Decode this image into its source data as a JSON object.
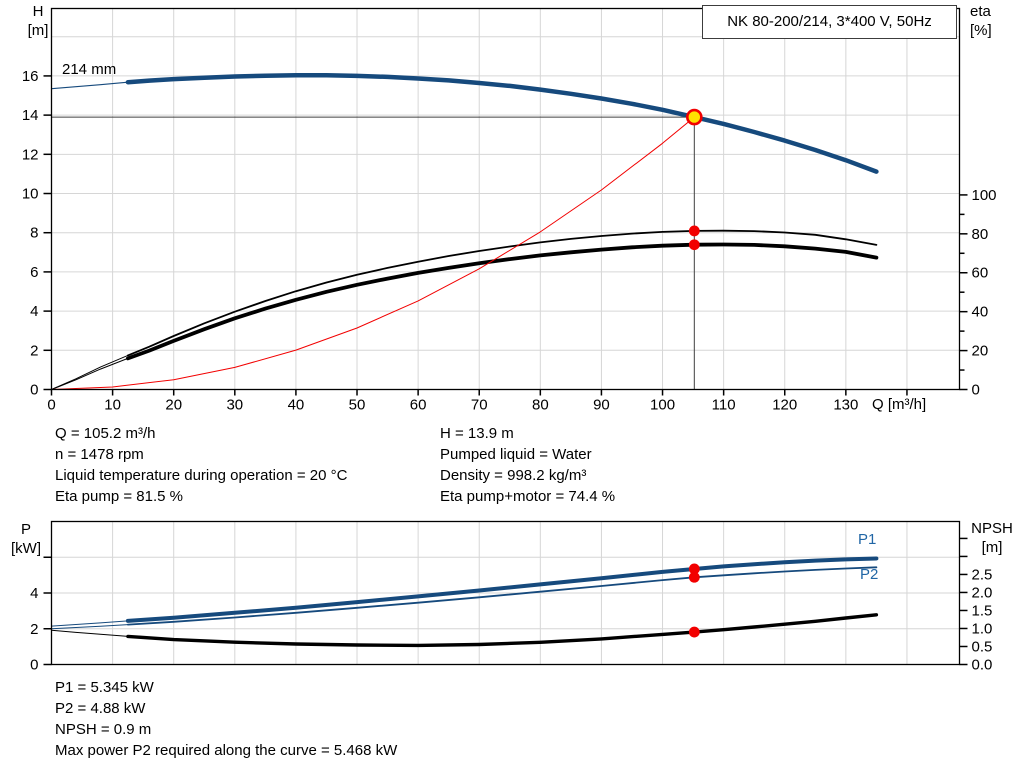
{
  "header": {
    "title": "NK 80-200/214, 3*400 V, 50Hz"
  },
  "colors": {
    "blue": "#164A7D",
    "black": "#000000",
    "red": "#F20000",
    "grid": "#D6D6D6",
    "duty_line": "#404040",
    "marker_fill": "#FFE000",
    "axis": "#000000",
    "series_label_blue": "#2166A5"
  },
  "axes": {
    "h": [
      "H",
      "[m]"
    ],
    "eta": [
      "eta",
      "[%]"
    ],
    "q": "Q [m³/h]",
    "p": [
      "P",
      "[kW]"
    ],
    "npsh": [
      "NPSH",
      "[m]"
    ]
  },
  "info": {
    "top_left": [
      "Q = 105.2 m³/h",
      "n = 1478 rpm",
      "Liquid temperature during operation = 20 °C",
      "Eta pump = 81.5 %"
    ],
    "top_right": [
      "H = 13.9 m",
      "Pumped liquid = Water",
      "Density = 998.2 kg/m³",
      "Eta pump+motor = 74.4 %"
    ],
    "bottom": [
      "P1 = 5.345 kW",
      "P2 = 4.88 kW",
      "NPSH = 0.9 m",
      "Max power P2 required along the curve = 5.468 kW"
    ]
  },
  "chart_data": [
    {
      "type": "line",
      "title": "Pump performance curve H/Q with efficiency",
      "curve_label": "214 mm",
      "x": {
        "min": 0,
        "max": 148.6,
        "label": "Q [m³/h]"
      },
      "y_left": {
        "min": 0,
        "max": 19.44,
        "label": "H [m]"
      },
      "y_right": {
        "min": 0,
        "max": 195.8,
        "label": "eta [%]"
      },
      "x_grid": [
        10,
        20,
        30,
        40,
        50,
        60,
        70,
        80,
        90,
        100,
        110,
        120,
        130,
        140
      ],
      "y_grid": [
        2,
        4,
        6,
        8,
        10,
        12,
        14,
        16,
        18
      ],
      "x_ticks": [
        {
          "v": 0,
          "label": "0"
        },
        {
          "v": 10,
          "label": "10"
        },
        {
          "v": 20,
          "label": "20"
        },
        {
          "v": 30,
          "label": "30"
        },
        {
          "v": 40,
          "label": "40"
        },
        {
          "v": 50,
          "label": "50"
        },
        {
          "v": 60,
          "label": "60"
        },
        {
          "v": 70,
          "label": "70"
        },
        {
          "v": 80,
          "label": "80"
        },
        {
          "v": 90,
          "label": "90"
        },
        {
          "v": 100,
          "label": "100"
        },
        {
          "v": 110,
          "label": "110"
        },
        {
          "v": 120,
          "label": "120"
        },
        {
          "v": 130,
          "label": "130"
        },
        {
          "v": 140,
          "label": ""
        }
      ],
      "y_left_ticks": [
        {
          "v": 0,
          "label": "0"
        },
        {
          "v": 2,
          "label": "2"
        },
        {
          "v": 4,
          "label": "4"
        },
        {
          "v": 6,
          "label": "6"
        },
        {
          "v": 8,
          "label": "8"
        },
        {
          "v": 10,
          "label": "10"
        },
        {
          "v": 12,
          "label": "12"
        },
        {
          "v": 14,
          "label": "14"
        },
        {
          "v": 16,
          "label": "16"
        }
      ],
      "y_right_ticks": [
        {
          "v": 0,
          "label": "0"
        },
        {
          "v": 10,
          "label": "",
          "minor": true
        },
        {
          "v": 20,
          "label": "20"
        },
        {
          "v": 30,
          "label": "",
          "minor": true
        },
        {
          "v": 40,
          "label": "40"
        },
        {
          "v": 50,
          "label": "",
          "minor": true
        },
        {
          "v": 60,
          "label": "60"
        },
        {
          "v": 70,
          "label": "",
          "minor": true
        },
        {
          "v": 80,
          "label": "80"
        },
        {
          "v": 90,
          "label": "",
          "minor": true
        },
        {
          "v": 100,
          "label": "100"
        }
      ],
      "duty_point": {
        "q": 105.2,
        "h": 13.9
      },
      "duty_dots": [
        {
          "name": "duty-dot-eta-pump",
          "q": 105.2,
          "value": 81.5,
          "axis": "right"
        },
        {
          "name": "duty-dot-eta-pump-motor",
          "q": 105.2,
          "value": 74.4,
          "axis": "right"
        }
      ],
      "series": [
        {
          "name": "pump-curve-lead",
          "axis": "left",
          "color": "blue",
          "width": 1.1,
          "points": [
            [
              0,
              15.35
            ],
            [
              4,
              15.45
            ],
            [
              8,
              15.55
            ],
            [
              12.5,
              15.68
            ]
          ]
        },
        {
          "name": "pump-curve-214mm",
          "axis": "left",
          "color": "blue",
          "width": 4.5,
          "points": [
            [
              12.5,
              15.68
            ],
            [
              16,
              15.76
            ],
            [
              20,
              15.84
            ],
            [
              25,
              15.91
            ],
            [
              30,
              15.97
            ],
            [
              35,
              16.01
            ],
            [
              40,
              16.03
            ],
            [
              45,
              16.03
            ],
            [
              50,
              16.0
            ],
            [
              55,
              15.95
            ],
            [
              60,
              15.87
            ],
            [
              65,
              15.77
            ],
            [
              70,
              15.64
            ],
            [
              75,
              15.49
            ],
            [
              80,
              15.3
            ],
            [
              85,
              15.09
            ],
            [
              90,
              14.85
            ],
            [
              95,
              14.58
            ],
            [
              100,
              14.27
            ],
            [
              105.2,
              13.9
            ],
            [
              110,
              13.55
            ],
            [
              115,
              13.14
            ],
            [
              120,
              12.7
            ],
            [
              125,
              12.22
            ],
            [
              130,
              11.7
            ],
            [
              135,
              11.12
            ]
          ]
        },
        {
          "name": "eta-pump-curve-lead",
          "axis": "right",
          "color": "black",
          "width": 1,
          "points": [
            [
              0,
              0
            ],
            [
              4,
              5.5
            ],
            [
              8,
              11.5
            ],
            [
              12.5,
              17.5
            ]
          ]
        },
        {
          "name": "eta-pump-curve",
          "axis": "right",
          "color": "black",
          "width": 1.8,
          "points": [
            [
              12.5,
              17.5
            ],
            [
              16,
              22
            ],
            [
              20,
              27.5
            ],
            [
              25,
              34
            ],
            [
              30,
              40
            ],
            [
              35,
              45.5
            ],
            [
              40,
              50.5
            ],
            [
              45,
              55
            ],
            [
              50,
              59
            ],
            [
              55,
              62.5
            ],
            [
              60,
              65.7
            ],
            [
              65,
              68.6
            ],
            [
              70,
              71.2
            ],
            [
              75,
              73.5
            ],
            [
              80,
              75.6
            ],
            [
              85,
              77.4
            ],
            [
              90,
              78.9
            ],
            [
              95,
              80.1
            ],
            [
              100,
              81
            ],
            [
              105.2,
              81.5
            ],
            [
              110,
              81.6
            ],
            [
              115,
              81.4
            ],
            [
              120,
              80.7
            ],
            [
              125,
              79.5
            ],
            [
              130,
              77.2
            ],
            [
              135,
              74.3
            ]
          ]
        },
        {
          "name": "eta-pump-motor-curve-lead",
          "axis": "right",
          "color": "black",
          "width": 1,
          "points": [
            [
              0,
              0
            ],
            [
              4,
              5
            ],
            [
              8,
              10.5
            ],
            [
              12.5,
              16
            ]
          ]
        },
        {
          "name": "eta-pump-motor-curve",
          "axis": "right",
          "color": "black",
          "width": 3.8,
          "points": [
            [
              12.5,
              16
            ],
            [
              16,
              20
            ],
            [
              20,
              25
            ],
            [
              25,
              31
            ],
            [
              30,
              36.6
            ],
            [
              35,
              41.6
            ],
            [
              40,
              46.1
            ],
            [
              45,
              50.2
            ],
            [
              50,
              53.8
            ],
            [
              55,
              57
            ],
            [
              60,
              59.9
            ],
            [
              65,
              62.5
            ],
            [
              70,
              64.9
            ],
            [
              75,
              67
            ],
            [
              80,
              68.9
            ],
            [
              85,
              70.5
            ],
            [
              90,
              71.9
            ],
            [
              95,
              73.1
            ],
            [
              100,
              73.9
            ],
            [
              105.2,
              74.4
            ],
            [
              110,
              74.5
            ],
            [
              115,
              74.3
            ],
            [
              120,
              73.6
            ],
            [
              125,
              72.4
            ],
            [
              130,
              70.7
            ],
            [
              135,
              67.8
            ]
          ]
        },
        {
          "name": "system-curve",
          "axis": "left",
          "color": "red",
          "width": 1,
          "points": [
            [
              0,
              0
            ],
            [
              10,
              0.13
            ],
            [
              20,
              0.5
            ],
            [
              30,
              1.13
            ],
            [
              40,
              2.01
            ],
            [
              50,
              3.14
            ],
            [
              60,
              4.52
            ],
            [
              70,
              6.16
            ],
            [
              80,
              8.04
            ],
            [
              90,
              10.18
            ],
            [
              100,
              12.56
            ],
            [
              105.2,
              13.9
            ]
          ]
        }
      ]
    },
    {
      "type": "line",
      "title": "Power and NPSH curves",
      "labels": {
        "p1": "P1",
        "p2": "P2"
      },
      "x": {
        "min": 0,
        "max": 148.6,
        "label": ""
      },
      "y_left": {
        "min": 0,
        "max": 8.0,
        "label": "P [kW]"
      },
      "y_right": {
        "min": 0,
        "max": 3.97,
        "label": "NPSH [m]"
      },
      "x_grid": [
        10,
        20,
        30,
        40,
        50,
        60,
        70,
        80,
        90,
        100,
        110,
        120,
        130,
        140
      ],
      "y_grid": [
        2,
        4,
        6
      ],
      "x_ticks": [],
      "y_left_ticks": [
        {
          "v": 0,
          "label": "0"
        },
        {
          "v": 2,
          "label": "2"
        },
        {
          "v": 4,
          "label": "4"
        },
        {
          "v": 6,
          "label": ""
        }
      ],
      "y_right_ticks": [
        {
          "v": 0,
          "label": "0.0"
        },
        {
          "v": 0.5,
          "label": "0.5"
        },
        {
          "v": 1,
          "label": "1.0"
        },
        {
          "v": 1.5,
          "label": "1.5"
        },
        {
          "v": 2,
          "label": "2.0"
        },
        {
          "v": 2.5,
          "label": "2.5"
        },
        {
          "v": 3,
          "label": ""
        },
        {
          "v": 3.5,
          "label": ""
        }
      ],
      "duty_dots": [
        {
          "name": "duty-dot-p1",
          "q": 105.2,
          "value": 5.345,
          "axis": "left"
        },
        {
          "name": "duty-dot-p2",
          "q": 105.2,
          "value": 4.88,
          "axis": "left"
        },
        {
          "name": "duty-dot-npsh",
          "q": 105.2,
          "value": 0.9,
          "axis": "right"
        }
      ],
      "series": [
        {
          "name": "p1-curve-lead",
          "axis": "left",
          "color": "blue",
          "width": 1,
          "points": [
            [
              0,
              2.15
            ],
            [
              4,
              2.24
            ],
            [
              8,
              2.33
            ],
            [
              12.5,
              2.44
            ]
          ]
        },
        {
          "name": "p1-curve",
          "axis": "left",
          "color": "blue",
          "width": 4,
          "points": [
            [
              12.5,
              2.44
            ],
            [
              20,
              2.62
            ],
            [
              30,
              2.89
            ],
            [
              40,
              3.18
            ],
            [
              50,
              3.49
            ],
            [
              60,
              3.81
            ],
            [
              70,
              4.14
            ],
            [
              80,
              4.48
            ],
            [
              90,
              4.83
            ],
            [
              100,
              5.18
            ],
            [
              105.2,
              5.345
            ],
            [
              110,
              5.49
            ],
            [
              115,
              5.61
            ],
            [
              120,
              5.72
            ],
            [
              125,
              5.81
            ],
            [
              130,
              5.88
            ],
            [
              135,
              5.93
            ]
          ]
        },
        {
          "name": "p2-curve-lead",
          "axis": "left",
          "color": "blue",
          "width": 1,
          "points": [
            [
              0,
              2.0
            ],
            [
              4,
              2.07
            ],
            [
              8,
              2.14
            ],
            [
              12.5,
              2.23
            ]
          ]
        },
        {
          "name": "p2-curve",
          "axis": "left",
          "color": "blue",
          "width": 1.8,
          "points": [
            [
              12.5,
              2.23
            ],
            [
              20,
              2.39
            ],
            [
              30,
              2.63
            ],
            [
              40,
              2.89
            ],
            [
              50,
              3.17
            ],
            [
              60,
              3.46
            ],
            [
              70,
              3.76
            ],
            [
              80,
              4.07
            ],
            [
              90,
              4.39
            ],
            [
              100,
              4.72
            ],
            [
              105.2,
              4.88
            ],
            [
              110,
              4.99
            ],
            [
              115,
              5.1
            ],
            [
              120,
              5.2
            ],
            [
              125,
              5.29
            ],
            [
              130,
              5.37
            ],
            [
              135,
              5.44
            ]
          ]
        },
        {
          "name": "npsh-curve-lead",
          "axis": "right",
          "color": "black",
          "width": 1,
          "points": [
            [
              0,
              0.95
            ],
            [
              4,
              0.89
            ],
            [
              8,
              0.84
            ],
            [
              12.5,
              0.78
            ]
          ]
        },
        {
          "name": "npsh-curve",
          "axis": "right",
          "color": "black",
          "width": 3.4,
          "points": [
            [
              12.5,
              0.78
            ],
            [
              20,
              0.69
            ],
            [
              30,
              0.62
            ],
            [
              40,
              0.57
            ],
            [
              50,
              0.54
            ],
            [
              60,
              0.53
            ],
            [
              70,
              0.555
            ],
            [
              80,
              0.615
            ],
            [
              90,
              0.71
            ],
            [
              100,
              0.835
            ],
            [
              105.2,
              0.9
            ],
            [
              110,
              0.965
            ],
            [
              115,
              1.04
            ],
            [
              120,
              1.12
            ],
            [
              125,
              1.2
            ],
            [
              130,
              1.29
            ],
            [
              135,
              1.38
            ]
          ]
        }
      ]
    }
  ]
}
